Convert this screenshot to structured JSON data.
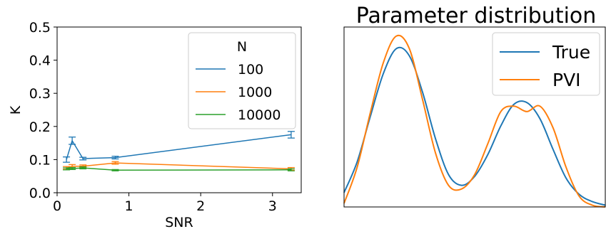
{
  "chart_data": [
    {
      "type": "line",
      "title": "",
      "xlabel": "SNR",
      "ylabel": "K",
      "xlim": [
        0,
        3.4
      ],
      "ylim": [
        0,
        0.5
      ],
      "xticks": [
        0,
        1,
        2,
        3
      ],
      "xtick_labels": [
        "0",
        "1",
        "2",
        "3"
      ],
      "yticks": [
        0.0,
        0.1,
        0.2,
        0.3,
        0.4,
        0.5
      ],
      "ytick_labels": [
        "0.0",
        "0.1",
        "0.2",
        "0.3",
        "0.4",
        "0.5"
      ],
      "grid": false,
      "legend_title": "N",
      "legend_position": "top-right",
      "x": [
        0.13,
        0.21,
        0.36,
        0.81,
        3.26
      ],
      "series": [
        {
          "name": "100",
          "color": "#1f77b4",
          "values": [
            0.1,
            0.157,
            0.103,
            0.106,
            0.175
          ],
          "errors": [
            0.008,
            0.011,
            0.004,
            0.004,
            0.01
          ]
        },
        {
          "name": "1000",
          "color": "#ff7f0e",
          "values": [
            0.075,
            0.08,
            0.08,
            0.09,
            0.072
          ],
          "errors": [
            0.004,
            0.005,
            0.004,
            0.004,
            0.004
          ]
        },
        {
          "name": "10000",
          "color": "#2ca02c",
          "values": [
            0.072,
            0.073,
            0.075,
            0.068,
            0.069
          ],
          "errors": [
            0.003,
            0.003,
            0.003,
            0.002,
            0.003
          ]
        }
      ]
    },
    {
      "type": "line",
      "title": "Parameter distribution",
      "xlabel": "",
      "ylabel": "",
      "grid": false,
      "axis_ticks": false,
      "legend_position": "top-right",
      "x_range": [
        0,
        1
      ],
      "y_range": [
        0,
        1
      ],
      "series": [
        {
          "name": "True",
          "color": "#1f77b4",
          "x": [
            0.0,
            0.05,
            0.1,
            0.15,
            0.2,
            0.25,
            0.3,
            0.35,
            0.4,
            0.45,
            0.5,
            0.55,
            0.6,
            0.65,
            0.7,
            0.75,
            0.8,
            0.85,
            0.9,
            0.95,
            1.0
          ],
          "values": [
            0.08,
            0.25,
            0.5,
            0.74,
            0.88,
            0.84,
            0.64,
            0.38,
            0.18,
            0.12,
            0.17,
            0.29,
            0.45,
            0.57,
            0.58,
            0.49,
            0.32,
            0.16,
            0.07,
            0.03,
            0.01
          ]
        },
        {
          "name": "PVI",
          "color": "#ff7f0e",
          "x": [
            0.0,
            0.05,
            0.1,
            0.15,
            0.2,
            0.25,
            0.3,
            0.35,
            0.4,
            0.45,
            0.5,
            0.55,
            0.6,
            0.65,
            0.7,
            0.75,
            0.8,
            0.85,
            0.9,
            0.95,
            1.0
          ],
          "values": [
            0.02,
            0.22,
            0.52,
            0.8,
            0.95,
            0.88,
            0.6,
            0.3,
            0.12,
            0.1,
            0.18,
            0.35,
            0.53,
            0.56,
            0.53,
            0.56,
            0.44,
            0.22,
            0.06,
            0.01,
            0.0
          ]
        }
      ]
    }
  ]
}
